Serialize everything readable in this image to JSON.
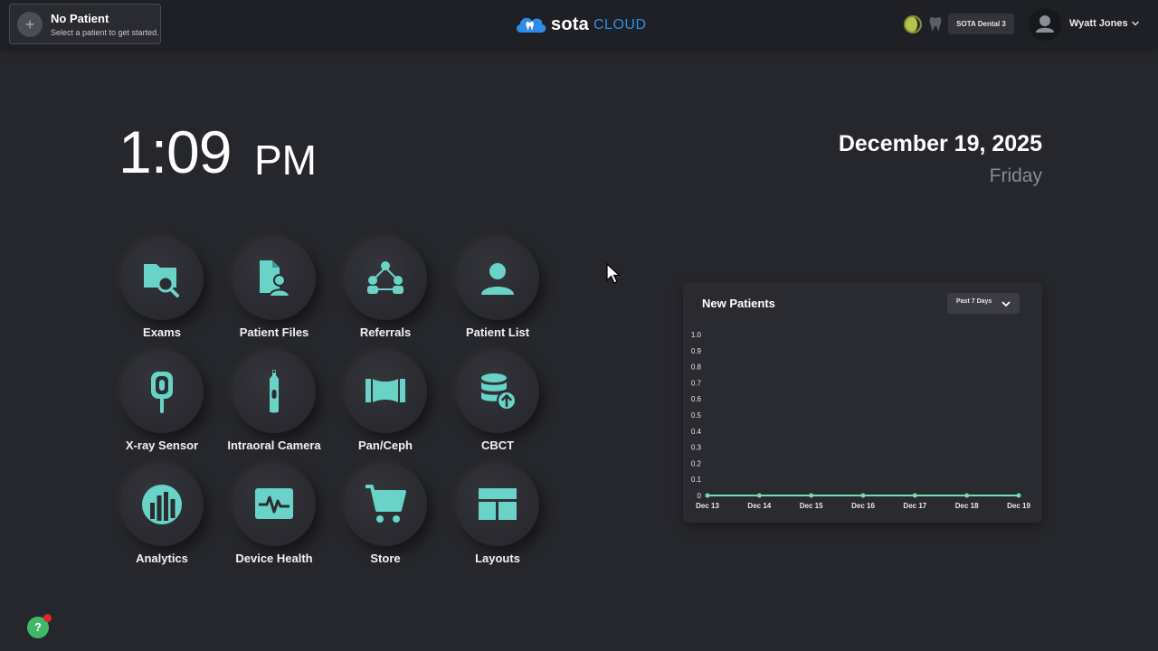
{
  "header": {
    "patient_title": "No Patient",
    "patient_subtitle": "Select a patient to get started.",
    "logo_text_bold": "sota",
    "logo_text_light": "CLOUD",
    "practice": "SOTA Dental 3",
    "user_name": "Wyatt Jones"
  },
  "clock": {
    "time": "1:09",
    "ampm": "PM",
    "date": "December 19, 2025",
    "weekday": "Friday"
  },
  "tiles": [
    {
      "label": "Exams",
      "icon": "exam-folder-search-icon"
    },
    {
      "label": "Patient Files",
      "icon": "patient-file-icon"
    },
    {
      "label": "Referrals",
      "icon": "referrals-network-icon"
    },
    {
      "label": "Patient List",
      "icon": "person-icon"
    },
    {
      "label": "X-ray Sensor",
      "icon": "xray-sensor-icon"
    },
    {
      "label": "Intraoral Camera",
      "icon": "intraoral-camera-icon"
    },
    {
      "label": "Pan/Ceph",
      "icon": "pan-ceph-icon"
    },
    {
      "label": "CBCT",
      "icon": "cbct-database-upload-icon"
    },
    {
      "label": "Analytics",
      "icon": "analytics-bars-icon"
    },
    {
      "label": "Device Health",
      "icon": "heartbeat-monitor-icon"
    },
    {
      "label": "Store",
      "icon": "shopping-cart-icon"
    },
    {
      "label": "Layouts",
      "icon": "layout-grid-icon"
    }
  ],
  "colors": {
    "accent": "#69d3c7",
    "background": "#26272c",
    "topbar": "#1f2025",
    "line": "#6ee0b0",
    "help": "#3fb868"
  },
  "chart_data": {
    "type": "line",
    "title": "New Patients",
    "range_selector": "Past 7 Days",
    "x": [
      "Dec 13",
      "Dec 14",
      "Dec 15",
      "Dec 16",
      "Dec 17",
      "Dec 18",
      "Dec 19"
    ],
    "series": [
      {
        "values": [
          0,
          0,
          0,
          0,
          0,
          0,
          0
        ]
      }
    ],
    "yticks": [
      "0",
      "0.1",
      "0.2",
      "0.3",
      "0.4",
      "0.5",
      "0.6",
      "0.7",
      "0.8",
      "0.9",
      "1.0"
    ],
    "ylim": [
      0,
      1
    ],
    "grid": false
  },
  "help": {
    "label": "?"
  }
}
